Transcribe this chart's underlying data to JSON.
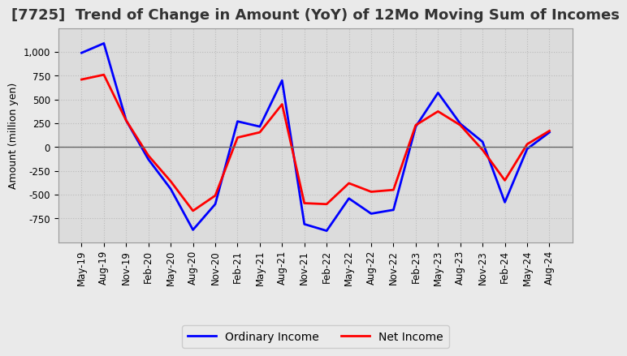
{
  "title": "[7725]  Trend of Change in Amount (YoY) of 12Mo Moving Sum of Incomes",
  "ylabel": "Amount (million yen)",
  "x_labels": [
    "May-19",
    "Aug-19",
    "Nov-19",
    "Feb-20",
    "May-20",
    "Aug-20",
    "Nov-20",
    "Feb-21",
    "May-21",
    "Aug-21",
    "Nov-21",
    "Feb-22",
    "May-22",
    "Aug-22",
    "Nov-22",
    "Feb-23",
    "May-23",
    "Aug-23",
    "Nov-23",
    "Feb-24",
    "May-24",
    "Aug-24"
  ],
  "ordinary_income": [
    990,
    1090,
    280,
    -130,
    -440,
    -870,
    -600,
    270,
    215,
    700,
    -810,
    -880,
    -540,
    -700,
    -660,
    215,
    570,
    245,
    55,
    -580,
    -20,
    155
  ],
  "net_income": [
    710,
    760,
    280,
    -90,
    -360,
    -670,
    -510,
    100,
    155,
    450,
    -590,
    -600,
    -380,
    -470,
    -450,
    230,
    375,
    230,
    -30,
    -350,
    30,
    170
  ],
  "ordinary_income_color": "#0000FF",
  "net_income_color": "#FF0000",
  "ylim": [
    -1000,
    1250
  ],
  "yticks": [
    -750,
    -500,
    -250,
    0,
    250,
    500,
    750,
    1000
  ],
  "fig_background_color": "#EAEAEA",
  "plot_background_color": "#DCDCDC",
  "grid_color": "#BBBBBB",
  "legend_labels": [
    "Ordinary Income",
    "Net Income"
  ],
  "title_fontsize": 13,
  "ylabel_fontsize": 9,
  "tick_fontsize": 8.5
}
